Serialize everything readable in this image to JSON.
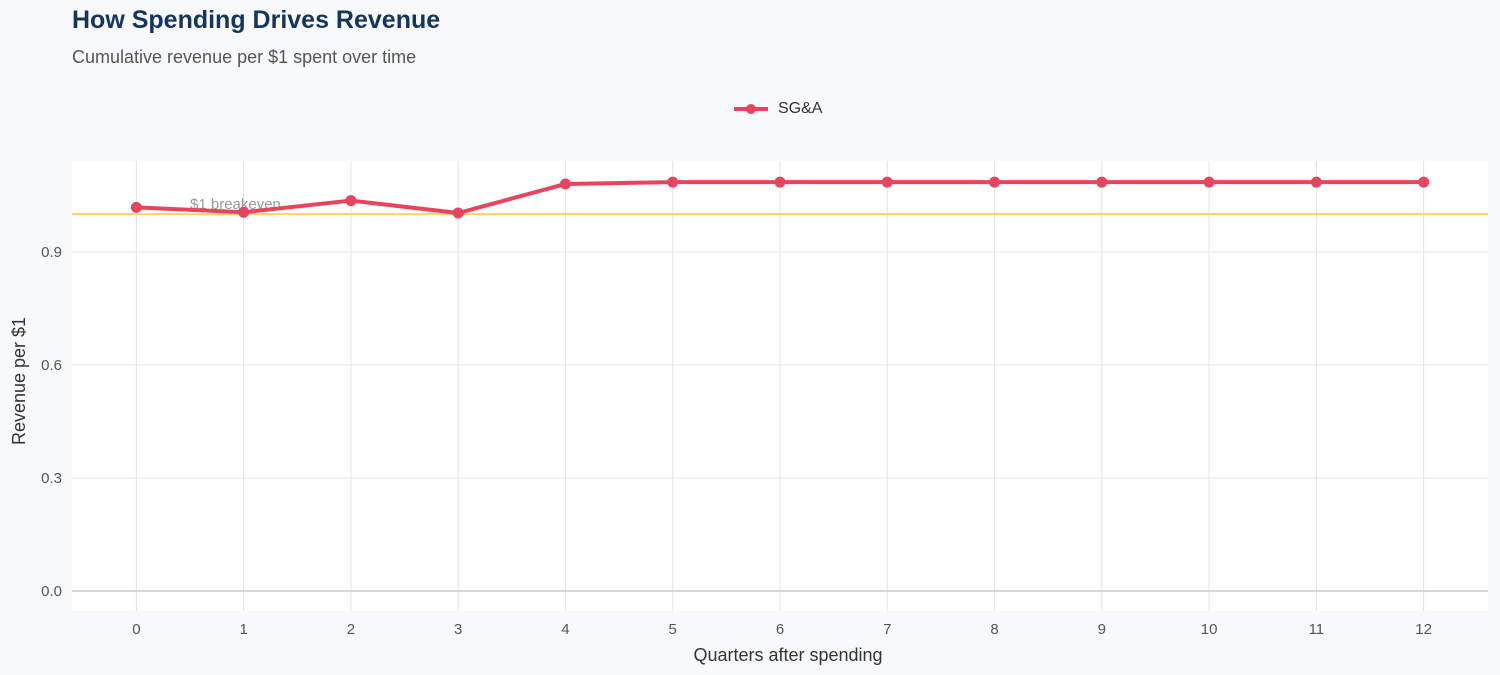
{
  "chart_data": {
    "type": "line",
    "title": "How Spending Drives Revenue",
    "subtitle": "Cumulative revenue per $1 spent over time",
    "xlabel": "Quarters after spending",
    "ylabel": "Revenue per $1",
    "x": [
      0,
      1,
      2,
      3,
      4,
      5,
      6,
      7,
      8,
      9,
      10,
      11,
      12
    ],
    "series": [
      {
        "name": "SG&A",
        "color": "#e8435f",
        "values": [
          1.018,
          1.005,
          1.036,
          1.003,
          1.08,
          1.085,
          1.085,
          1.085,
          1.085,
          1.085,
          1.085,
          1.085,
          1.085
        ]
      }
    ],
    "yticks": [
      0.0,
      0.3,
      0.6,
      0.9
    ],
    "ytick_labels": [
      "0.0",
      "0.3",
      "0.6",
      "0.9"
    ],
    "xtick_labels": [
      "0",
      "1",
      "2",
      "3",
      "4",
      "5",
      "6",
      "7",
      "8",
      "9",
      "10",
      "11",
      "12"
    ],
    "ylim": [
      -0.053,
      1.141
    ],
    "xlim": [
      -0.6,
      12.6
    ],
    "reference_line": {
      "y": 1.0,
      "label": "$1 breakeven",
      "color": "#fcd36a"
    },
    "grid": true,
    "legend_position": "top"
  }
}
